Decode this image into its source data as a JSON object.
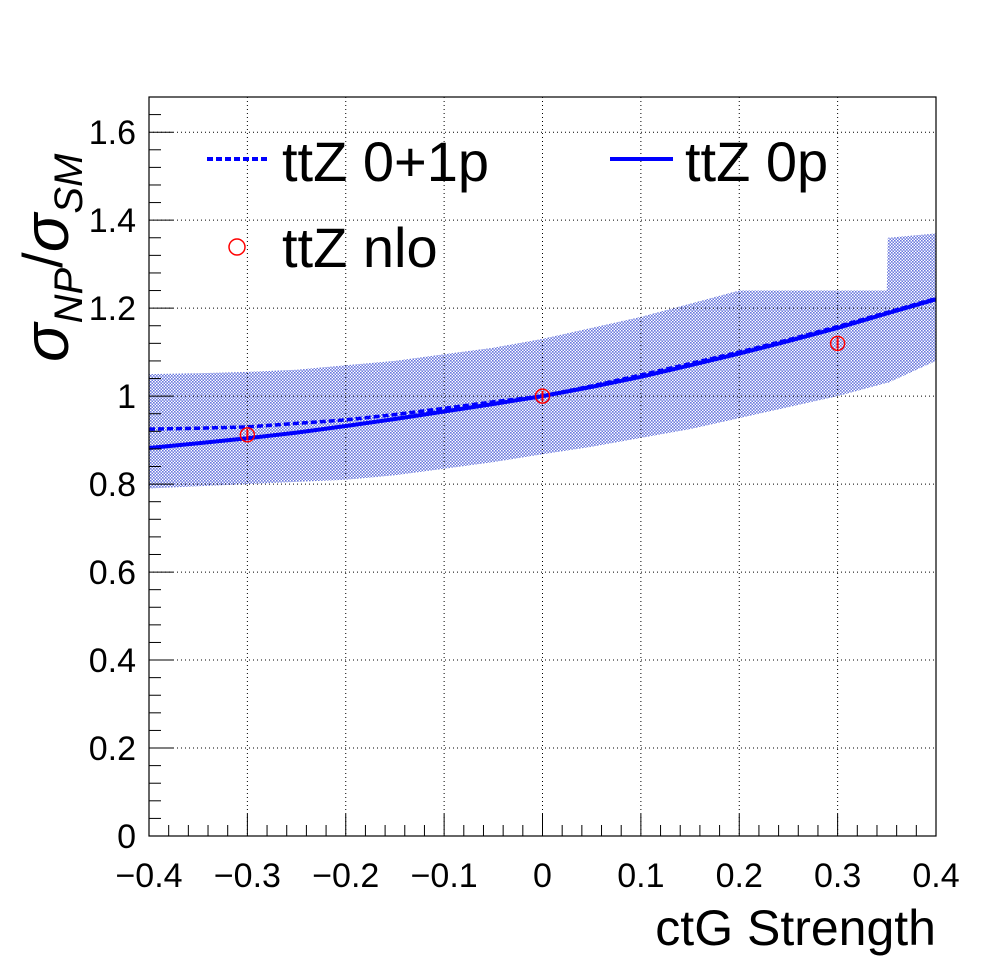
{
  "chart_data": {
    "type": "line",
    "xlabel": "ctG Strength",
    "ylabel": {
      "main": "σ",
      "num_sub": "NP",
      "slash": "/",
      "den": "σ",
      "den_sub": "SM"
    },
    "xlim": [
      -0.4,
      0.4
    ],
    "ylim": [
      0,
      1.68
    ],
    "x_ticks": [
      -0.4,
      -0.3,
      -0.2,
      -0.1,
      0,
      0.1,
      0.2,
      0.3,
      0.4
    ],
    "x_tick_labels": [
      "−0.4",
      "−0.3",
      "−0.2",
      "−0.1",
      "0",
      "0.1",
      "0.2",
      "0.3",
      "0.4"
    ],
    "y_ticks": [
      0,
      0.2,
      0.4,
      0.6,
      0.8,
      1,
      1.2,
      1.4,
      1.6
    ],
    "y_tick_labels": [
      "0",
      "0.2",
      "0.4",
      "0.6",
      "0.8",
      "1",
      "1.2",
      "1.4",
      "1.6"
    ],
    "grid": true,
    "legend_position": "top",
    "series": [
      {
        "name": "ttZ 0+1p",
        "style": "dashed",
        "color": "#0000ff",
        "x": [
          -0.4,
          -0.35,
          -0.3,
          -0.25,
          -0.2,
          -0.15,
          -0.1,
          -0.05,
          0,
          0.05,
          0.1,
          0.15,
          0.2,
          0.25,
          0.3,
          0.35,
          0.4
        ],
        "y": [
          0.925,
          0.927,
          0.93,
          0.938,
          0.946,
          0.958,
          0.972,
          0.987,
          1.0,
          1.023,
          1.048,
          1.074,
          1.1,
          1.128,
          1.158,
          1.19,
          1.222
        ]
      },
      {
        "name": "ttZ 0p",
        "style": "solid",
        "color": "#0000ff",
        "x": [
          -0.4,
          -0.35,
          -0.3,
          -0.25,
          -0.2,
          -0.15,
          -0.1,
          -0.05,
          0,
          0.05,
          0.1,
          0.15,
          0.2,
          0.25,
          0.3,
          0.35,
          0.4
        ],
        "y": [
          0.882,
          0.893,
          0.904,
          0.917,
          0.932,
          0.948,
          0.965,
          0.982,
          1.0,
          1.021,
          1.044,
          1.07,
          1.097,
          1.125,
          1.155,
          1.188,
          1.22
        ]
      },
      {
        "name": "ttZ nlo",
        "style": "markers",
        "color": "#ff0000",
        "x": [
          -0.3,
          0,
          0.3
        ],
        "y": [
          0.912,
          1.0,
          1.12
        ],
        "yerr": [
          0.012,
          0.012,
          0.012
        ]
      }
    ],
    "uncertainty_band": {
      "color": "#5060d8",
      "x": [
        -0.4,
        -0.35,
        -0.3,
        -0.25,
        -0.2,
        -0.15,
        -0.1,
        -0.05,
        0,
        0.05,
        0.1,
        0.15,
        0.2,
        0.25,
        0.3,
        0.35,
        0.351,
        0.4
      ],
      "lower": [
        0.79,
        0.795,
        0.8,
        0.805,
        0.81,
        0.82,
        0.835,
        0.85,
        0.868,
        0.885,
        0.905,
        0.925,
        0.95,
        0.975,
        1.0,
        1.03,
        1.03,
        1.08
      ],
      "upper": [
        1.05,
        1.052,
        1.055,
        1.06,
        1.07,
        1.08,
        1.095,
        1.11,
        1.13,
        1.155,
        1.18,
        1.21,
        1.24,
        1.24,
        1.24,
        1.24,
        1.36,
        1.37
      ]
    }
  }
}
